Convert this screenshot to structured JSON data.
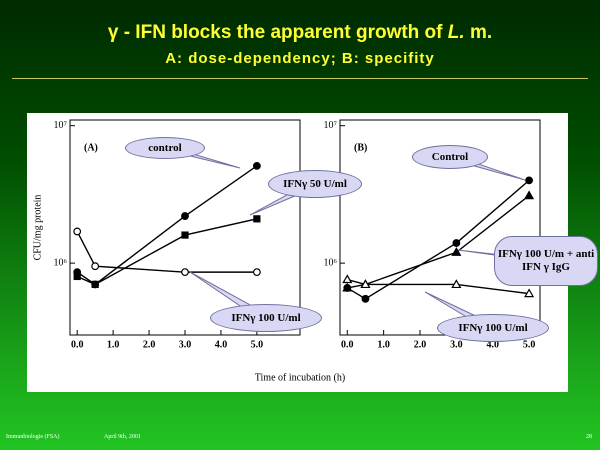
{
  "slide": {
    "title_parts": [
      "γ - IFN blocks the apparent growth of ",
      "L.",
      " m."
    ],
    "subtitle": "A: dose-dependency; B: specifity",
    "footer_left": "Immunbiologie (FSA)",
    "footer_date": "April 9th, 2001",
    "page": "28"
  },
  "chart_data": [
    {
      "type": "line",
      "panel_label": "(A)",
      "ylabel": "CFU/mg protein",
      "xlabel": "Time of incubation (h)",
      "x": [
        0,
        0.5,
        3,
        5
      ],
      "log_y": true,
      "xlim": [
        -0.2,
        6.2
      ],
      "xticks": [
        {
          "value": 0,
          "label": "0.0"
        },
        {
          "value": 1,
          "label": "1.0"
        },
        {
          "value": 2,
          "label": "2.0"
        },
        {
          "value": 3,
          "label": "3.0"
        },
        {
          "value": 4,
          "label": "4.0"
        },
        {
          "value": 5,
          "label": "5.0"
        }
      ],
      "ylim": [
        300000,
        11000000
      ],
      "yticks": [
        {
          "value": 1000000,
          "label": "10⁶"
        },
        {
          "value": 10000000,
          "label": "10⁷"
        }
      ],
      "series": [
        {
          "name": "control",
          "color": "#000000",
          "marker": "filled-circle",
          "values": [
            860000,
            700000,
            2200000,
            5100000
          ]
        },
        {
          "name": "IFNγ 50 U/ml",
          "color": "#000000",
          "marker": "filled-square",
          "values": [
            800000,
            700000,
            1600000,
            2100000
          ]
        },
        {
          "name": "IFNγ 100 U/ml",
          "color": "#000000",
          "marker": "open-circle",
          "values": [
            1700000,
            950000,
            860000,
            860000
          ]
        }
      ]
    },
    {
      "type": "line",
      "panel_label": "(B)",
      "x": [
        0,
        0.5,
        3,
        5
      ],
      "log_y": true,
      "xlim": [
        -0.2,
        5.3
      ],
      "xticks": [
        {
          "value": 0,
          "label": "0.0"
        },
        {
          "value": 1,
          "label": "1.0"
        },
        {
          "value": 2,
          "label": "2.0"
        },
        {
          "value": 3,
          "label": "3.0"
        },
        {
          "value": 4,
          "label": "4.0"
        },
        {
          "value": 5,
          "label": "5.0"
        }
      ],
      "ylim": [
        300000,
        11000000
      ],
      "yticks": [
        {
          "value": 1000000,
          "label": "10⁶"
        },
        {
          "value": 10000000,
          "label": "10⁷"
        }
      ],
      "series": [
        {
          "name": "Control",
          "color": "#000000",
          "marker": "filled-circle",
          "values": [
            660000,
            550000,
            1400000,
            4000000
          ]
        },
        {
          "name": "IFNγ 100 U/m + anti IFN γ IgG",
          "color": "#000000",
          "marker": "filled-triangle",
          "values": [
            660000,
            700000,
            1200000,
            3100000
          ]
        },
        {
          "name": "IFNγ 100 U/ml",
          "color": "#000000",
          "marker": "open-triangle",
          "values": [
            760000,
            700000,
            700000,
            600000
          ]
        }
      ]
    }
  ]
}
